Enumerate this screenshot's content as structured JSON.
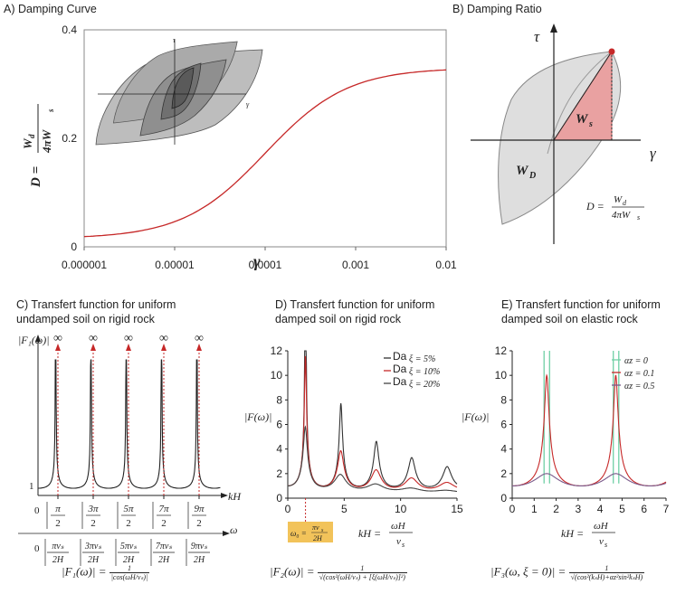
{
  "panels": {
    "a": {
      "title": "A) Damping Curve"
    },
    "b": {
      "title": "B) Damping Ratio"
    },
    "c": {
      "title_line1": "C) Transfert function for uniform",
      "title_line2": "undamped soil on rigid rock"
    },
    "d": {
      "title_line1": "D) Transfert function for uniform",
      "title_line2": "damped soil on rigid rock"
    },
    "e": {
      "title_line1": "E) Transfert function for uniform",
      "title_line2": "damped soil on elastic rock"
    }
  },
  "labels": {
    "gamma": "γ",
    "tau": "τ",
    "ws": "W",
    "ws_sub": "s",
    "wd": "W",
    "wd_sub": "D",
    "d_formula_lhs": "D =",
    "d_formula_num": "W",
    "d_formula_num_sub": "d",
    "d_formula_den": "4πW",
    "d_formula_den_sub": "s",
    "infinity": "∞",
    "f1_axis": "|F₁(ω)|",
    "f_axis": "|F(ω)|",
    "kh": "kH",
    "omega": "ω",
    "one": "1",
    "zero": "0",
    "omega0": "ω₀ =",
    "kh_eq": "kH =",
    "kh_num": "ωH",
    "kh_den": "v",
    "kh_den_sub": "s",
    "omega0_num": "πv",
    "omega0_num_sub": "s",
    "omega0_den": "2H"
  },
  "equations": {
    "f1": "|F₁(ω)| =",
    "f1_num": "1",
    "f1_den": "|cos(ωH/vₛ)|",
    "f2": "|F₂(ω)| =",
    "f2_num": "1",
    "f2_den": "√(cos²(ωH/vₛ) + [ξ(ωH/vₛ)]²)",
    "f3": "|F₃(ω, ξ = 0)| =",
    "f3_num": "1",
    "f3_den": "√(cos²(kₛH)+αz²sin²kₛH)"
  },
  "pi_labels": {
    "num": [
      "π",
      "3π",
      "5π",
      "7π",
      "9π"
    ],
    "den": "2",
    "omega_num": [
      "πvₛ",
      "3πvₛ",
      "5πvₛ",
      "7πvₛ",
      "9πvₛ"
    ],
    "omega_den": "2H"
  },
  "colors": {
    "curve_red": "#c62828",
    "curve_dark": "#333333",
    "green": "#6fcfa5",
    "purple": "#7a5a8a",
    "highlight": "#f2c35a",
    "ws_fill": "#e9a1a1",
    "loop_fill": "#dddddd"
  },
  "chart_data": [
    {
      "type": "line",
      "x": [
        1e-06,
        1e-05,
        0.0001,
        0.001,
        0.01
      ],
      "values": [
        0.017,
        0.027,
        0.135,
        0.27,
        0.325
      ],
      "xscale": "log",
      "xticks": [
        "0.000001",
        "0.00001",
        "0.0001",
        "0.001",
        "0.01"
      ],
      "yticks": [
        "0",
        "0.2",
        "0.4"
      ],
      "ylim": [
        0,
        0.4
      ],
      "xlabel": "γ",
      "ylabel": "D = Wd/4πWs"
    },
    {
      "type": "line",
      "x_peaks": [
        1.5708,
        4.7124,
        7.854,
        10.9956,
        14.1372
      ],
      "xticks": [
        "0",
        "5",
        "10",
        "15"
      ],
      "yticks": [
        "0",
        "2",
        "4",
        "6",
        "8",
        "10",
        "12"
      ],
      "xlim": [
        0,
        15
      ],
      "ylim": [
        0,
        12
      ],
      "xlabel": "kH = ωH/vs",
      "ylabel": "|F(ω)|",
      "series": [
        {
          "name": "ξ = 5%",
          "damping": 0.05,
          "color": "#333333"
        },
        {
          "name": "ξ = 10%",
          "damping": 0.1,
          "color": "#c62828"
        },
        {
          "name": "ξ = 20%",
          "damping": 0.2,
          "color": "#444444"
        }
      ],
      "legend_prefix": "Da"
    },
    {
      "type": "line",
      "xticks": [
        "0",
        "1",
        "2",
        "3",
        "4",
        "5",
        "6",
        "7"
      ],
      "yticks": [
        "0",
        "2",
        "4",
        "6",
        "8",
        "10",
        "12"
      ],
      "xlim": [
        0,
        7
      ],
      "ylim": [
        0,
        12
      ],
      "xlabel": "kH = ωH/vs",
      "ylabel": "|F(ω)|",
      "series": [
        {
          "name": "αz = 0",
          "alpha": 0,
          "color": "#6fcfa5"
        },
        {
          "name": "αz = 0.1",
          "alpha": 0.1,
          "color": "#c62828"
        },
        {
          "name": "αz = 0.5",
          "alpha": 0.5,
          "color": "#7a5a8a"
        }
      ]
    }
  ]
}
